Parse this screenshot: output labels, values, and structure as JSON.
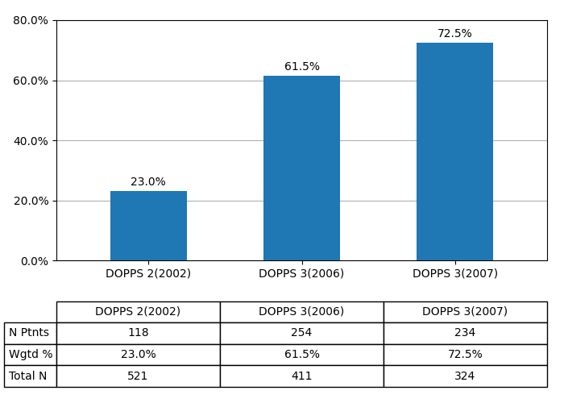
{
  "chart_data": {
    "type": "bar",
    "categories": [
      "DOPPS 2(2002)",
      "DOPPS 3(2006)",
      "DOPPS 3(2007)"
    ],
    "values": [
      23.0,
      61.5,
      72.5
    ],
    "value_labels": [
      "23.0%",
      "61.5%",
      "72.5%"
    ],
    "data_labels": true,
    "ylim": [
      0,
      80
    ],
    "yticks": [
      {
        "value": 0,
        "label": "0.0%"
      },
      {
        "value": 20,
        "label": "20.0%"
      },
      {
        "value": 40,
        "label": "40.0%"
      },
      {
        "value": 60,
        "label": "60.0%"
      },
      {
        "value": 80,
        "label": "80.0%"
      }
    ],
    "grid": true,
    "table": {
      "row_labels": [
        "N Ptnts",
        "Wgtd %",
        "Total N"
      ],
      "cells": [
        [
          "118",
          "254",
          "234"
        ],
        [
          "23.0%",
          "61.5%",
          "72.5%"
        ],
        [
          "521",
          "411",
          "324"
        ]
      ]
    }
  }
}
